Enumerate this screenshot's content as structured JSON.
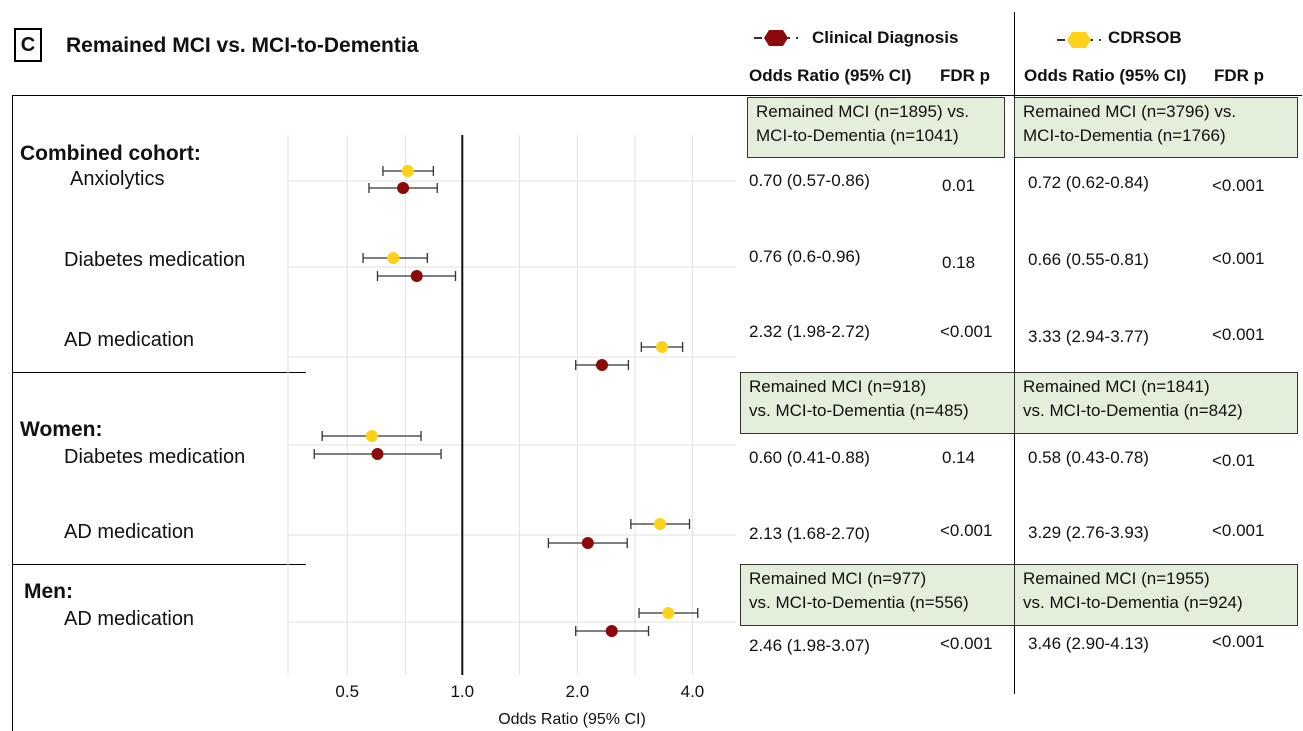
{
  "panel": {
    "letter": "C",
    "title": "Remained MCI vs. MCI-to-Dementia"
  },
  "legend": [
    {
      "label": "Clinical Diagnosis",
      "color": "#8b0a0a"
    },
    {
      "label": "CDRSOB",
      "color": "#ffd21a"
    }
  ],
  "columns": {
    "or_header": "Odds Ratio (95% CI)",
    "p_header": "FDR p"
  },
  "groups": [
    {
      "cohort": "Combined cohort:",
      "clinical_n": [
        "Remained MCI (n=1895) vs.",
        "MCI-to-Dementia (n=1041)"
      ],
      "cdrsob_n": [
        "Remained MCI (n=3796) vs.",
        "MCI-to-Dementia (n=1766)"
      ],
      "rows": [
        {
          "label": "Anxiolytics",
          "clinical_or": "0.70 (0.57-0.86)",
          "clinical_p": "0.01",
          "cdrsob_or": "0.72 (0.62-0.84)",
          "cdrsob_p": "<0.001"
        },
        {
          "label": "Diabetes medication",
          "clinical_or": "0.76 (0.6-0.96)",
          "clinical_p": "0.18",
          "cdrsob_or": "0.66 (0.55-0.81)",
          "cdrsob_p": "<0.001"
        },
        {
          "label": "AD medication",
          "clinical_or": "2.32 (1.98-2.72)",
          "clinical_p": "<0.001",
          "cdrsob_or": "3.33 (2.94-3.77)",
          "cdrsob_p": "<0.001"
        }
      ]
    },
    {
      "cohort": "Women:",
      "clinical_n": [
        "Remained MCI (n=918)",
        "vs. MCI-to-Dementia (n=485)"
      ],
      "cdrsob_n": [
        "Remained MCI (n=1841)",
        "vs. MCI-to-Dementia (n=842)"
      ],
      "rows": [
        {
          "label": "Diabetes medication",
          "clinical_or": "0.60 (0.41-0.88)",
          "clinical_p": "0.14",
          "cdrsob_or": "0.58 (0.43-0.78)",
          "cdrsob_p": "<0.01"
        },
        {
          "label": "AD medication",
          "clinical_or": "2.13 (1.68-2.70)",
          "clinical_p": "<0.001",
          "cdrsob_or": "3.29 (2.76-3.93)",
          "cdrsob_p": "<0.001"
        }
      ]
    },
    {
      "cohort": "Men:",
      "clinical_n": [
        "Remained MCI (n=977)",
        "vs. MCI-to-Dementia (n=556)"
      ],
      "cdrsob_n": [
        "Remained MCI (n=1955)",
        "vs. MCI-to-Dementia (n=924)"
      ],
      "rows": [
        {
          "label": "AD medication",
          "clinical_or": "2.46 (1.98-3.07)",
          "clinical_p": "<0.001",
          "cdrsob_or": "3.46 (2.90-4.13)",
          "cdrsob_p": "<0.001"
        }
      ]
    }
  ],
  "chart_data": {
    "type": "scatter",
    "subtype": "forest-plot",
    "xlabel": "Odds Ratio (95% CI)",
    "x_scale": "log",
    "xlim": [
      0.35,
      5.2
    ],
    "xticks": [
      0.5,
      1.0,
      2.0,
      4.0
    ],
    "xtick_labels": [
      "0.5",
      "1.0",
      "2.0",
      "4.0"
    ],
    "reference_line": 1.0,
    "grid": true,
    "series": [
      {
        "name": "Clinical Diagnosis",
        "color": "#8b0a0a",
        "points": [
          {
            "row": "Combined cohort: Anxiolytics",
            "or": 0.7,
            "lo": 0.57,
            "hi": 0.86
          },
          {
            "row": "Combined cohort: Diabetes medication",
            "or": 0.76,
            "lo": 0.6,
            "hi": 0.96
          },
          {
            "row": "Combined cohort: AD medication",
            "or": 2.32,
            "lo": 1.98,
            "hi": 2.72
          },
          {
            "row": "Women: Diabetes medication",
            "or": 0.6,
            "lo": 0.41,
            "hi": 0.88
          },
          {
            "row": "Women: AD medication",
            "or": 2.13,
            "lo": 1.68,
            "hi": 2.7
          },
          {
            "row": "Men: AD medication",
            "or": 2.46,
            "lo": 1.98,
            "hi": 3.07
          }
        ]
      },
      {
        "name": "CDRSOB",
        "color": "#ffd21a",
        "points": [
          {
            "row": "Combined cohort: Anxiolytics",
            "or": 0.72,
            "lo": 0.62,
            "hi": 0.84
          },
          {
            "row": "Combined cohort: Diabetes medication",
            "or": 0.66,
            "lo": 0.55,
            "hi": 0.81
          },
          {
            "row": "Combined cohort: AD medication",
            "or": 3.33,
            "lo": 2.94,
            "hi": 3.77
          },
          {
            "row": "Women: Diabetes medication",
            "or": 0.58,
            "lo": 0.43,
            "hi": 0.78
          },
          {
            "row": "Women: AD medication",
            "or": 3.29,
            "lo": 2.76,
            "hi": 3.93
          },
          {
            "row": "Men: AD medication",
            "or": 3.46,
            "lo": 2.9,
            "hi": 4.13
          }
        ]
      }
    ]
  }
}
